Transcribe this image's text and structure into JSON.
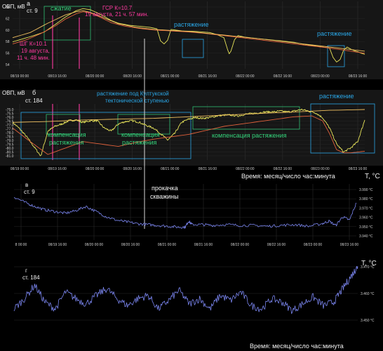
{
  "chart_data": [
    {
      "panel": "а",
      "type": "line",
      "ylabel": "ОВП, мВ",
      "station": "ст. 9",
      "ylim": [
        53,
        66
      ],
      "yticks": [
        "64",
        "62",
        "60",
        "58",
        "56",
        "54"
      ],
      "xticks": [
        "08/19 00:00",
        "08/19 16:00",
        "08/20 00:00",
        "08/20 16:00",
        "08/21 00:00",
        "08/21 16:00",
        "08/22 00:00",
        "08/22 16:00",
        "08/23 00:00",
        "08/23 16:00"
      ],
      "series": [
        {
          "color": "#e8e45a",
          "x": [
            0,
            3,
            6,
            9,
            12,
            15,
            18,
            20,
            22,
            24,
            26,
            28,
            30,
            33,
            36,
            39,
            41,
            42,
            43,
            44,
            45,
            48,
            52,
            56,
            58,
            60,
            61,
            61.5,
            62,
            63,
            64,
            66,
            70,
            76,
            80,
            82,
            84,
            86,
            88,
            90,
            91,
            92,
            93,
            94,
            95,
            96,
            97,
            98,
            99,
            100
          ],
          "y": [
            58.2,
            58.8,
            59.4,
            60.1,
            61.5,
            63.0,
            64.2,
            64.6,
            64.4,
            63.8,
            63.1,
            62.3,
            61.8,
            61.4,
            61.2,
            61.0,
            60.7,
            58.4,
            57.8,
            58.5,
            60.6,
            60.3,
            60.2,
            60.0,
            59.6,
            59.0,
            56.8,
            55.9,
            56.4,
            58.6,
            59.4,
            59.1,
            58.8,
            58.4,
            58.1,
            57.8,
            57.6,
            57.4,
            57.2,
            57.0,
            55.2,
            54.3,
            54.8,
            56.6,
            57.2,
            56.8,
            56.5,
            56.3,
            56.0,
            55.8
          ]
        },
        {
          "color": "#e2623c",
          "x": [
            0,
            4,
            8,
            12,
            15,
            18,
            20,
            22,
            25,
            28,
            32,
            36,
            40,
            45,
            50,
            55,
            60,
            65,
            70,
            75,
            80,
            85,
            90,
            95,
            100
          ],
          "y": [
            57.8,
            58.6,
            59.8,
            61.2,
            62.6,
            63.6,
            64.0,
            63.8,
            62.9,
            61.9,
            61.2,
            60.8,
            60.5,
            60.3,
            60.1,
            59.8,
            59.4,
            59.0,
            58.6,
            58.2,
            57.8,
            57.4,
            57.0,
            56.5,
            56.0
          ]
        },
        {
          "color": "#f0c060",
          "x": [
            0,
            5,
            10,
            15,
            18,
            20,
            22,
            26,
            30,
            35,
            40,
            50,
            60,
            70,
            80,
            90,
            100
          ],
          "y": [
            59.0,
            60.0,
            61.8,
            63.4,
            64.0,
            64.2,
            63.9,
            62.8,
            61.7,
            61.0,
            60.6,
            60.2,
            59.5,
            58.8,
            58.0,
            57.2,
            56.4
          ]
        }
      ],
      "annotations": [
        {
          "text": "а",
          "color": "#f2f2f2"
        },
        {
          "text": "сжатие",
          "color": "#34d27a"
        },
        {
          "text": "растяжение",
          "color": "#2aa6e6"
        },
        {
          "text": "растяжение",
          "color": "#2aa6e6"
        },
        {
          "text": "ГСР К=10.7",
          "color": "#ff3aa0"
        },
        {
          "text": "19 августа, 21 ч. 57 мин.",
          "color": "#ff3aa0"
        },
        {
          "text": "ШГ К=10.1",
          "color": "#ff3aa0"
        },
        {
          "text": "19 августа,",
          "color": "#ff3aa0"
        },
        {
          "text": "11 ч. 48 мин.",
          "color": "#ff3aa0"
        }
      ]
    },
    {
      "panel": "б",
      "type": "line",
      "ylabel": "ОВП, мВ",
      "station": "ст. 184",
      "ylim": [
        -81.5,
        -74.5
      ],
      "yticks": [
        "-75.0",
        "-75.5",
        "-76.0",
        "-76.5",
        "-77.0",
        "-77.5",
        "-78.0",
        "-78.5",
        "-79.0",
        "-79.5",
        "-80.0",
        "-80.5",
        "-81.0"
      ],
      "xticks": [
        "08/19 00:00",
        "08/19 16:00",
        "08/20 00:00",
        "08/20 16:00",
        "08/21 00:00",
        "08/21 16:00",
        "08/22 00:00",
        "08/22 16:00",
        "08/23 00:00",
        "08/23 16:00"
      ],
      "xlabel": "Время: месяц/число час:минута",
      "series": [
        {
          "color": "#e8e45a",
          "x": [
            0,
            2,
            4,
            6,
            8,
            10,
            12,
            14,
            16,
            18,
            20,
            22,
            24,
            26,
            28,
            30,
            32,
            34,
            36,
            38,
            40,
            42,
            44,
            46,
            48,
            50,
            52,
            54,
            56,
            58,
            60,
            62,
            64,
            66,
            68,
            70,
            72,
            74,
            76,
            78,
            80,
            82,
            84,
            86,
            88,
            90,
            92,
            94,
            96,
            98,
            100
          ],
          "y": [
            -76.8,
            -77.6,
            -78.6,
            -79.8,
            -81.0,
            -77.9,
            -77.3,
            -77.0,
            -76.6,
            -76.5,
            -76.8,
            -76.6,
            -76.6,
            -77.5,
            -77.9,
            -77.0,
            -76.7,
            -76.6,
            -76.8,
            -77.2,
            -77.5,
            -78.2,
            -79.0,
            -78.2,
            -76.8,
            -76.4,
            -76.2,
            -76.3,
            -76.2,
            -76.0,
            -75.9,
            -75.9,
            -76.0,
            -75.8,
            -75.7,
            -75.6,
            -75.5,
            -75.5,
            -75.4,
            -75.5,
            -75.4,
            -75.2,
            -75.4,
            -75.6,
            -76.2,
            -77.5,
            -79.5,
            -80.5,
            -80.0,
            -79.2,
            -76.5
          ]
        },
        {
          "color": "#e2623c",
          "x": [
            0,
            5,
            10,
            15,
            20,
            25,
            30,
            35,
            40,
            45,
            50,
            55,
            60,
            65,
            70,
            75,
            80,
            85,
            88,
            90,
            92,
            94,
            96,
            98,
            100
          ],
          "y": [
            -77.5,
            -79.2,
            -80.8,
            -80.0,
            -79.2,
            -79.5,
            -79.8,
            -79.3,
            -78.9,
            -78.6,
            -78.3,
            -77.8,
            -77.3,
            -77.0,
            -76.7,
            -76.4,
            -76.1,
            -76.0,
            -76.6,
            -78.2,
            -80.2,
            -80.6,
            -80.6,
            -80.5,
            -80.4
          ]
        },
        {
          "color": "#f0c060",
          "x": [
            0,
            10,
            20,
            30,
            40,
            50,
            60,
            70,
            80,
            90,
            100
          ],
          "y": [
            -76.8,
            -76.7,
            -76.5,
            -76.4,
            -76.3,
            -76.1,
            -75.9,
            -75.7,
            -75.5,
            -75.3,
            -75.2
          ]
        }
      ],
      "annotations": [
        {
          "text": "б",
          "color": "#f2f2f2"
        },
        {
          "text": "растяжение под Култукской",
          "color": "#2aa6e6"
        },
        {
          "text": "тектонической ступенью",
          "color": "#2aa6e6"
        },
        {
          "text": "растяжение",
          "color": "#2aa6e6"
        },
        {
          "text": "компенсация",
          "color": "#34d27a"
        },
        {
          "text": "растяжения",
          "color": "#34d27a"
        },
        {
          "text": "компенсация",
          "color": "#34d27a"
        },
        {
          "text": "растяжения",
          "color": "#34d27a"
        },
        {
          "text": "компенсация растяжения",
          "color": "#34d27a"
        }
      ]
    },
    {
      "panel": "в",
      "type": "line",
      "ylabel": "T, °C",
      "station": "ст. 9",
      "ylim": [
        3.935,
        4.0
      ],
      "yticks": [
        "3.990 °C",
        "3.980 °C",
        "3.970 °C",
        "3.960 °C",
        "3.950 °C",
        "3.940 °C"
      ],
      "xticks": [
        "8 00:00",
        "08/19 16:00",
        "08/20 00:00",
        "08/20 16:00",
        "08/21 00:00",
        "08/21 16:00",
        "08/22 00:00",
        "08/22 16:00",
        "08/23 00:00",
        "08/23 16:00"
      ],
      "series": [
        {
          "color": "#7b86f0",
          "x": [
            0,
            3,
            6,
            9,
            12,
            15,
            18,
            21,
            24,
            27,
            30,
            33,
            36,
            39,
            42,
            45,
            48,
            50,
            51,
            52,
            55,
            58,
            62,
            66,
            70,
            74,
            78,
            82,
            86,
            90,
            92,
            94,
            96,
            98,
            100
          ],
          "y": [
            3.985,
            3.979,
            3.974,
            3.97,
            3.968,
            3.966,
            3.969,
            3.974,
            3.968,
            3.962,
            3.958,
            3.956,
            3.954,
            3.953,
            3.952,
            3.951,
            3.95,
            3.95,
            3.957,
            3.953,
            3.953,
            3.952,
            3.953,
            3.952,
            3.952,
            3.951,
            3.952,
            3.953,
            3.951,
            3.954,
            3.957,
            3.952,
            3.962,
            3.958,
            3.978
          ]
        }
      ],
      "annotations": [
        {
          "text": "в",
          "color": "#f2f2f2"
        },
        {
          "text": "прокачка",
          "color": "#f2f2f2"
        },
        {
          "text": "скважины",
          "color": "#f2f2f2"
        }
      ]
    },
    {
      "panel": "г",
      "type": "line",
      "ylabel": "T, °C",
      "station": "ст. 184",
      "ylim": [
        3.443,
        3.48
      ],
      "yticks": [
        "3.470 °C",
        "3.460 °C",
        "3.450 °C"
      ],
      "xlabel": "Время: месяц/число час:минута",
      "series": [
        {
          "color": "#7b86f0",
          "x": [
            0,
            3,
            6,
            9,
            12,
            15,
            18,
            21,
            24,
            27,
            30,
            33,
            36,
            39,
            42,
            45,
            48,
            51,
            54,
            57,
            60,
            63,
            66,
            69,
            72,
            75,
            78,
            81,
            84,
            87,
            90,
            93,
            95,
            97,
            99,
            100
          ],
          "y": [
            3.452,
            3.458,
            3.466,
            3.456,
            3.452,
            3.462,
            3.458,
            3.455,
            3.46,
            3.464,
            3.458,
            3.454,
            3.458,
            3.46,
            3.452,
            3.457,
            3.463,
            3.455,
            3.458,
            3.452,
            3.46,
            3.457,
            3.462,
            3.454,
            3.452,
            3.458,
            3.456,
            3.451,
            3.455,
            3.459,
            3.454,
            3.456,
            3.462,
            3.468,
            3.474,
            3.477
          ]
        }
      ],
      "annotations": [
        {
          "text": "г",
          "color": "#f2f2f2"
        }
      ]
    }
  ]
}
